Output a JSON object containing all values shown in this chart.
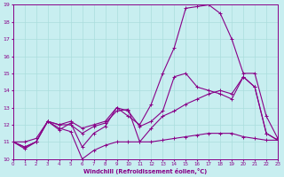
{
  "xlabel": "Windchill (Refroidissement éolien,°C)",
  "bg_color": "#c8eef0",
  "line_color": "#880088",
  "grid_color": "#aadddd",
  "xlim": [
    0,
    23
  ],
  "ylim": [
    10,
    19
  ],
  "xticks": [
    0,
    1,
    2,
    3,
    4,
    5,
    6,
    7,
    8,
    9,
    10,
    11,
    12,
    13,
    14,
    15,
    16,
    17,
    18,
    19,
    20,
    21,
    22,
    23
  ],
  "yticks": [
    10,
    11,
    12,
    13,
    14,
    15,
    16,
    17,
    18,
    19
  ],
  "line1_x": [
    0,
    1,
    2,
    3,
    4,
    5,
    6,
    7,
    8,
    9,
    10,
    11,
    12,
    13,
    14,
    15,
    16,
    17,
    18,
    19,
    20,
    21,
    22,
    23
  ],
  "line1_y": [
    11.0,
    10.6,
    11.0,
    12.2,
    11.8,
    11.6,
    10.0,
    10.5,
    10.8,
    11.0,
    11.0,
    11.0,
    11.0,
    11.1,
    11.2,
    11.3,
    11.4,
    11.5,
    11.5,
    11.5,
    11.3,
    11.2,
    11.1,
    11.1
  ],
  "line2_x": [
    0,
    1,
    2,
    3,
    4,
    5,
    6,
    7,
    8,
    9,
    10,
    11,
    12,
    13,
    14,
    15,
    16,
    17,
    18,
    19,
    20,
    21,
    22,
    23
  ],
  "line2_y": [
    11.0,
    10.7,
    11.0,
    12.2,
    12.0,
    12.0,
    11.5,
    11.9,
    12.1,
    12.8,
    12.9,
    11.0,
    11.8,
    12.5,
    12.8,
    13.2,
    13.5,
    13.8,
    14.0,
    13.8,
    14.8,
    14.2,
    11.5,
    11.1
  ],
  "line3_x": [
    0,
    1,
    2,
    3,
    4,
    5,
    6,
    7,
    8,
    9,
    10,
    11,
    12,
    13,
    14,
    15,
    16,
    17,
    18,
    19,
    20,
    21,
    22,
    23
  ],
  "line3_y": [
    11.0,
    10.7,
    11.0,
    12.2,
    11.7,
    12.1,
    10.7,
    11.5,
    11.9,
    13.0,
    12.8,
    11.9,
    12.2,
    12.8,
    14.8,
    15.0,
    14.2,
    14.0,
    13.8,
    13.5,
    14.8,
    14.2,
    11.5,
    11.1
  ],
  "line4_x": [
    0,
    1,
    2,
    3,
    4,
    5,
    6,
    7,
    8,
    9,
    10,
    11,
    12,
    13,
    14,
    15,
    16,
    17,
    18,
    19,
    20,
    21,
    22,
    23
  ],
  "line4_y": [
    11.0,
    11.0,
    11.2,
    12.2,
    12.0,
    12.2,
    11.8,
    12.0,
    12.2,
    13.0,
    12.5,
    12.0,
    13.2,
    15.0,
    16.5,
    18.8,
    18.9,
    19.0,
    18.5,
    17.0,
    15.0,
    15.0,
    12.5,
    11.2
  ]
}
